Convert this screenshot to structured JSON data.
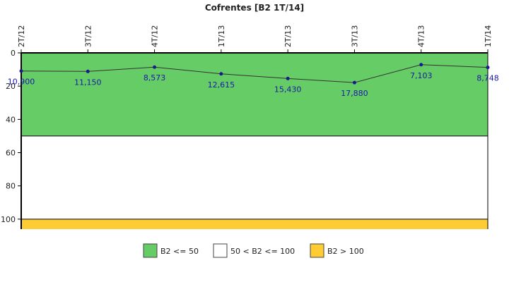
{
  "chart_data": {
    "type": "line",
    "title": "Cofrentes [B2 1T/14]",
    "categories": [
      "2T/12",
      "3T/12",
      "4T/12",
      "1T/13",
      "2T/13",
      "3T/13",
      "4T/13",
      "1T/14"
    ],
    "series": [
      {
        "values": [
          10.9,
          11.15,
          8.573,
          12.615,
          15.43,
          17.88,
          7.103,
          8.748
        ],
        "labels": [
          "10,900",
          "11,150",
          "8,573",
          "12,615",
          "15,430",
          "17,880",
          "7,103",
          "8,748"
        ],
        "color": "#333333",
        "marker_color": "#1a1a8c"
      }
    ],
    "y_axis": {
      "reversed": true,
      "ylim": [
        0,
        106
      ],
      "ticks": [
        0,
        20,
        40,
        60,
        80,
        100
      ],
      "tick_labels": [
        "0",
        "20",
        "40",
        "60",
        "80",
        "100"
      ]
    },
    "bands": [
      {
        "from": 0,
        "to": 50,
        "color": "#66cc66"
      },
      {
        "from": 50,
        "to": 100,
        "color": "#ffffff"
      },
      {
        "from": 100,
        "to": 106,
        "color": "#ffcc33"
      }
    ],
    "legend": {
      "placement": "bottom",
      "items": [
        {
          "label": "B2 <= 50",
          "color": "#66cc66"
        },
        {
          "label": "50 < B2 <= 100",
          "color": "#ffffff"
        },
        {
          "label": "B2 > 100",
          "color": "#ffcc33"
        }
      ]
    },
    "label_color": "#1a1aa6"
  }
}
